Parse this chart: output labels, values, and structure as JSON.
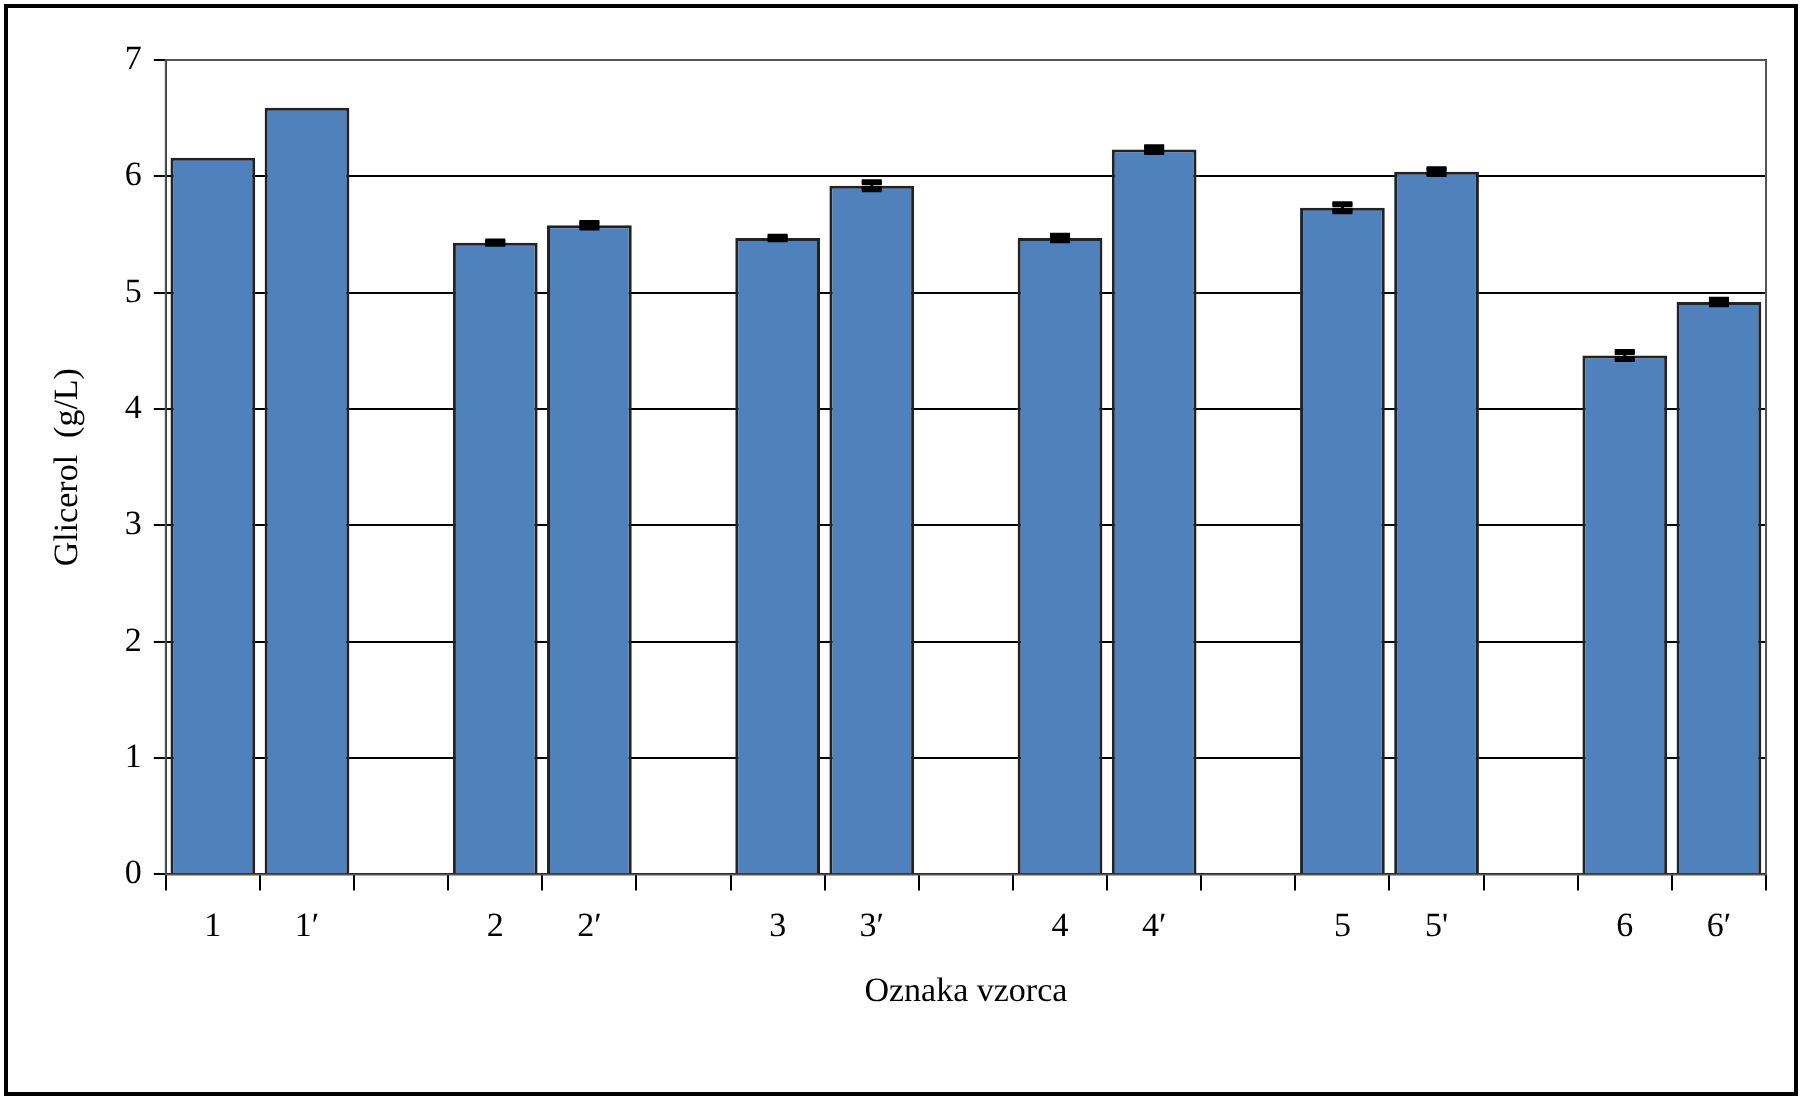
{
  "chart_data": {
    "type": "bar",
    "xlabel": "Oznaka vzorca",
    "ylabel": "Glicerol  (g/L)",
    "categories": [
      "1",
      "1′",
      null,
      "2",
      "2′",
      null,
      "3",
      "3′",
      null,
      "4",
      "4′",
      null,
      "5",
      "5'",
      null,
      "6",
      "6′"
    ],
    "values": [
      6.16,
      6.59,
      null,
      5.43,
      5.58,
      null,
      5.47,
      5.92,
      null,
      5.47,
      6.23,
      null,
      5.73,
      6.04,
      null,
      4.46,
      4.92
    ],
    "errors": [
      null,
      null,
      null,
      0.01,
      0.02,
      null,
      0.01,
      0.03,
      null,
      0.02,
      0.02,
      null,
      0.03,
      0.02,
      null,
      0.03,
      0.02
    ],
    "color": "#4f81bd",
    "ylim": [
      0,
      7
    ],
    "yticks": [
      0,
      1,
      2,
      3,
      4,
      5,
      6,
      7
    ],
    "grid": "y",
    "legend": false
  }
}
